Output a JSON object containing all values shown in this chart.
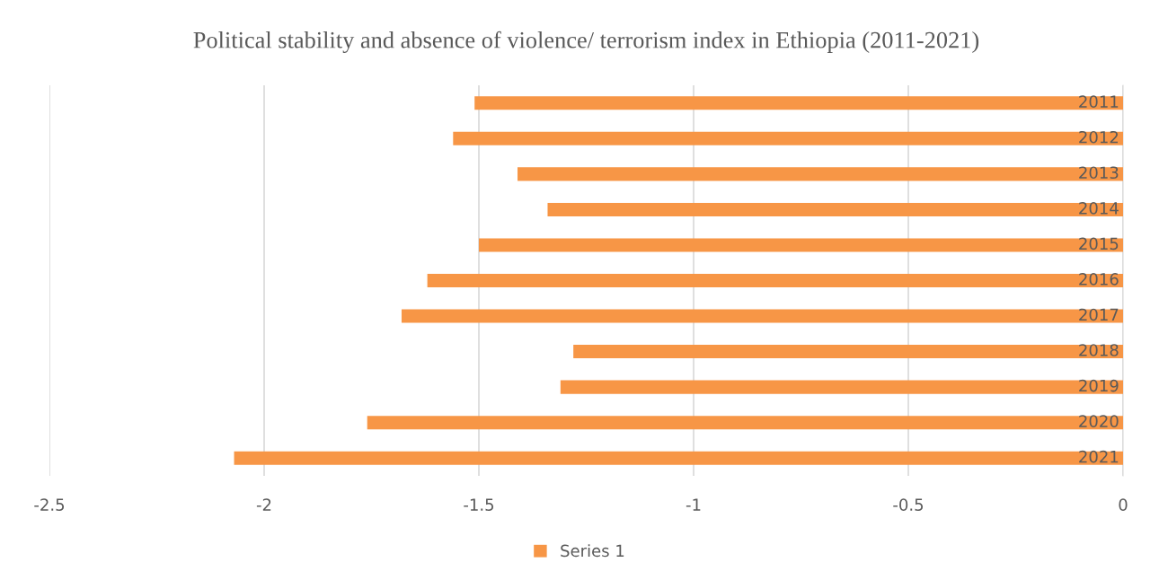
{
  "chart_data": {
    "type": "bar",
    "orientation": "horizontal",
    "title": "Political stability and absence of violence/ terrorism index in Ethiopia (2011-2021)",
    "categories": [
      "2011",
      "2012",
      "2013",
      "2014",
      "2015",
      "2016",
      "2017",
      "2018",
      "2019",
      "2020",
      "2021"
    ],
    "series": [
      {
        "name": "Series 1",
        "color": "#f79646",
        "values": [
          -1.51,
          -1.56,
          -1.41,
          -1.34,
          -1.5,
          -1.62,
          -1.68,
          -1.28,
          -1.31,
          -1.76,
          -2.07
        ]
      }
    ],
    "xlim": [
      -2.5,
      0
    ],
    "xticks": [
      -2.5,
      -2,
      -1.5,
      -1,
      -0.5,
      0
    ],
    "grid": "x",
    "legend": "bottom"
  }
}
